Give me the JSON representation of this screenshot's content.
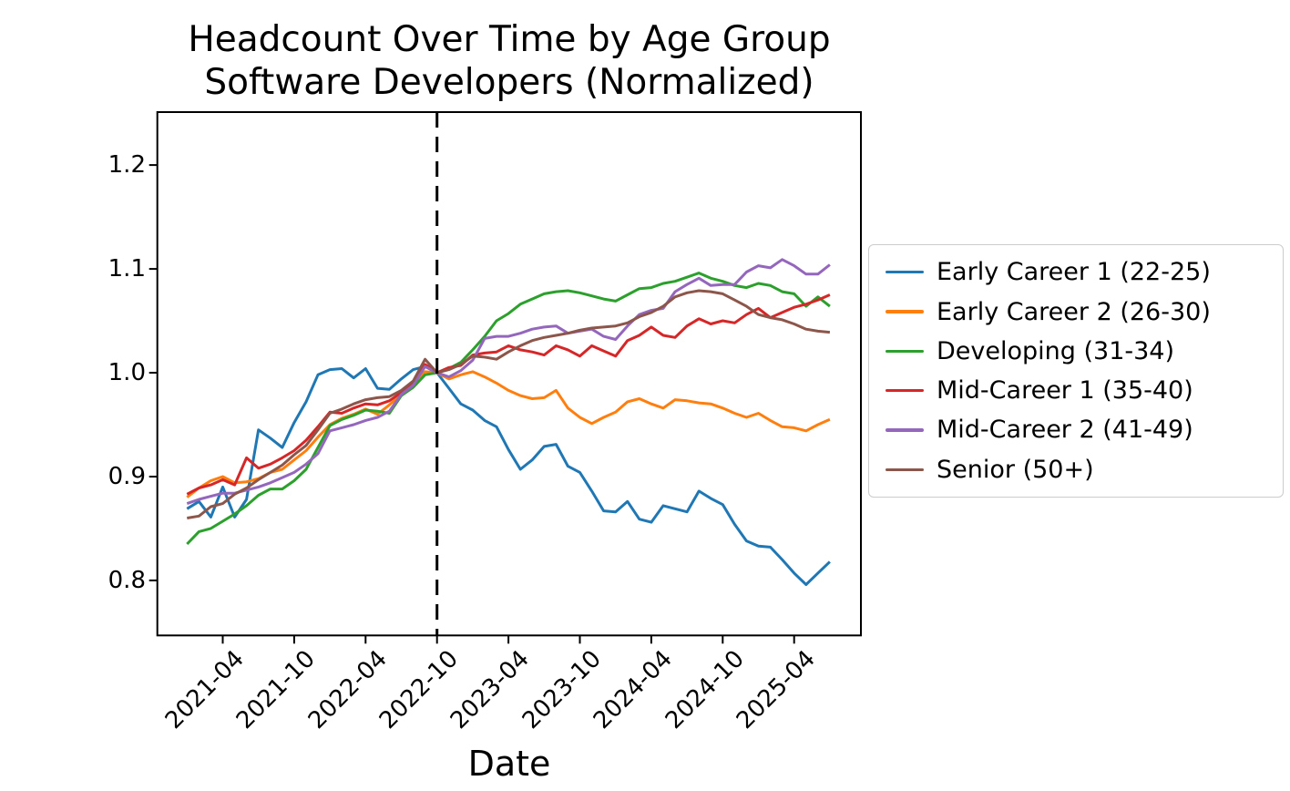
{
  "figure": {
    "title_line1": "Headcount Over Time by Age Group",
    "title_line2": "Software Developers (Normalized)"
  },
  "chart_data": {
    "type": "line",
    "title": "Headcount Over Time by Age Group",
    "subtitle": "Software Developers (Normalized)",
    "xlabel": "Date",
    "ylabel": "",
    "grid": false,
    "legend_position": "right of plot",
    "ytick_labels": [
      "0.8",
      "0.9",
      "1.0",
      "1.1",
      "1.2"
    ],
    "ytick_values": [
      0.8,
      0.9,
      1.0,
      1.1,
      1.2
    ],
    "xtick_labels": [
      "2021-04",
      "2021-10",
      "2022-04",
      "2022-10",
      "2023-04",
      "2023-10",
      "2024-04",
      "2024-10",
      "2025-04"
    ],
    "ylim": [
      0.747,
      1.251
    ],
    "xlim_month_index": [
      -2.495,
      56.61
    ],
    "vline": {
      "month": "2022-10",
      "style": "dashed",
      "color": "#000000",
      "meaning": "normalization point (all series = 1.0)"
    },
    "x_months": [
      "2021-01",
      "2021-02",
      "2021-03",
      "2021-04",
      "2021-05",
      "2021-06",
      "2021-07",
      "2021-08",
      "2021-09",
      "2021-10",
      "2021-11",
      "2021-12",
      "2022-01",
      "2022-02",
      "2022-03",
      "2022-04",
      "2022-05",
      "2022-06",
      "2022-07",
      "2022-08",
      "2022-09",
      "2022-10",
      "2022-11",
      "2022-12",
      "2023-01",
      "2023-02",
      "2023-03",
      "2023-04",
      "2023-05",
      "2023-06",
      "2023-07",
      "2023-08",
      "2023-09",
      "2023-10",
      "2023-11",
      "2023-12",
      "2024-01",
      "2024-02",
      "2024-03",
      "2024-04",
      "2024-05",
      "2024-06",
      "2024-07",
      "2024-08",
      "2024-09",
      "2024-10",
      "2024-11",
      "2024-12",
      "2025-01",
      "2025-02",
      "2025-03",
      "2025-04",
      "2025-05",
      "2025-06",
      "2025-07"
    ],
    "series": [
      {
        "name": "Early Career 1 (22-25)",
        "color": "#1f77b4",
        "values": [
          0.869,
          0.876,
          0.861,
          0.89,
          0.861,
          0.878,
          0.945,
          0.937,
          0.928,
          0.952,
          0.972,
          0.998,
          1.003,
          1.004,
          0.995,
          1.004,
          0.985,
          0.984,
          0.994,
          1.003,
          1.006,
          1.0,
          0.985,
          0.97,
          0.964,
          0.954,
          0.948,
          0.926,
          0.907,
          0.916,
          0.929,
          0.931,
          0.91,
          0.904,
          0.886,
          0.867,
          0.866,
          0.876,
          0.859,
          0.856,
          0.872,
          0.869,
          0.866,
          0.886,
          0.879,
          0.873,
          0.854,
          0.838,
          0.833,
          0.832,
          0.82,
          0.807,
          0.796,
          0.807,
          0.818
        ]
      },
      {
        "name": "Early Career 2 (26-30)",
        "color": "#ff7f0e",
        "values": [
          0.88,
          0.889,
          0.896,
          0.9,
          0.894,
          0.895,
          0.898,
          0.904,
          0.907,
          0.916,
          0.925,
          0.938,
          0.95,
          0.956,
          0.96,
          0.965,
          0.96,
          0.969,
          0.979,
          0.988,
          1.001,
          1.0,
          0.994,
          0.998,
          1.001,
          0.996,
          0.99,
          0.983,
          0.978,
          0.975,
          0.976,
          0.983,
          0.966,
          0.957,
          0.951,
          0.957,
          0.962,
          0.972,
          0.975,
          0.97,
          0.966,
          0.974,
          0.973,
          0.971,
          0.97,
          0.966,
          0.961,
          0.957,
          0.961,
          0.954,
          0.948,
          0.947,
          0.944,
          0.95,
          0.955
        ]
      },
      {
        "name": "Developing (31-34)",
        "color": "#2ca02c",
        "values": [
          0.835,
          0.847,
          0.85,
          0.857,
          0.864,
          0.872,
          0.882,
          0.888,
          0.888,
          0.896,
          0.907,
          0.928,
          0.949,
          0.955,
          0.959,
          0.964,
          0.963,
          0.961,
          0.978,
          0.986,
          0.998,
          1.0,
          1.004,
          1.01,
          1.022,
          1.035,
          1.05,
          1.057,
          1.066,
          1.071,
          1.076,
          1.078,
          1.079,
          1.077,
          1.074,
          1.071,
          1.069,
          1.075,
          1.081,
          1.082,
          1.086,
          1.088,
          1.092,
          1.096,
          1.091,
          1.088,
          1.084,
          1.082,
          1.086,
          1.084,
          1.078,
          1.076,
          1.064,
          1.073,
          1.064
        ]
      },
      {
        "name": "Mid-Career 1 (35-40)",
        "color": "#d62728",
        "values": [
          0.883,
          0.889,
          0.892,
          0.897,
          0.892,
          0.918,
          0.908,
          0.912,
          0.918,
          0.925,
          0.935,
          0.948,
          0.962,
          0.961,
          0.966,
          0.97,
          0.969,
          0.973,
          0.981,
          0.989,
          1.008,
          1.0,
          1.005,
          1.007,
          1.017,
          1.019,
          1.02,
          1.026,
          1.022,
          1.02,
          1.017,
          1.026,
          1.022,
          1.016,
          1.026,
          1.021,
          1.016,
          1.031,
          1.036,
          1.044,
          1.036,
          1.034,
          1.045,
          1.052,
          1.047,
          1.05,
          1.048,
          1.056,
          1.062,
          1.053,
          1.058,
          1.063,
          1.066,
          1.07,
          1.075
        ]
      },
      {
        "name": "Mid-Career 2 (41-49)",
        "color": "#9467bd",
        "values": [
          0.874,
          0.878,
          0.881,
          0.884,
          0.884,
          0.887,
          0.89,
          0.894,
          0.899,
          0.904,
          0.912,
          0.922,
          0.944,
          0.947,
          0.95,
          0.954,
          0.957,
          0.963,
          0.979,
          0.988,
          1.006,
          1.0,
          0.996,
          1.002,
          1.012,
          1.033,
          1.035,
          1.035,
          1.038,
          1.042,
          1.044,
          1.045,
          1.038,
          1.04,
          1.042,
          1.035,
          1.032,
          1.045,
          1.056,
          1.06,
          1.062,
          1.078,
          1.085,
          1.091,
          1.084,
          1.085,
          1.085,
          1.097,
          1.103,
          1.101,
          1.109,
          1.103,
          1.095,
          1.095,
          1.104
        ]
      },
      {
        "name": "Senior (50+)",
        "color": "#8c564b",
        "values": [
          0.86,
          0.862,
          0.871,
          0.874,
          0.883,
          0.889,
          0.897,
          0.904,
          0.911,
          0.921,
          0.93,
          0.945,
          0.961,
          0.965,
          0.97,
          0.974,
          0.976,
          0.977,
          0.983,
          0.992,
          1.013,
          1.0,
          1.003,
          1.008,
          1.016,
          1.015,
          1.013,
          1.02,
          1.026,
          1.031,
          1.034,
          1.036,
          1.038,
          1.041,
          1.043,
          1.044,
          1.045,
          1.048,
          1.054,
          1.058,
          1.064,
          1.073,
          1.077,
          1.079,
          1.078,
          1.076,
          1.07,
          1.064,
          1.056,
          1.053,
          1.051,
          1.047,
          1.042,
          1.04,
          1.039
        ]
      }
    ]
  }
}
